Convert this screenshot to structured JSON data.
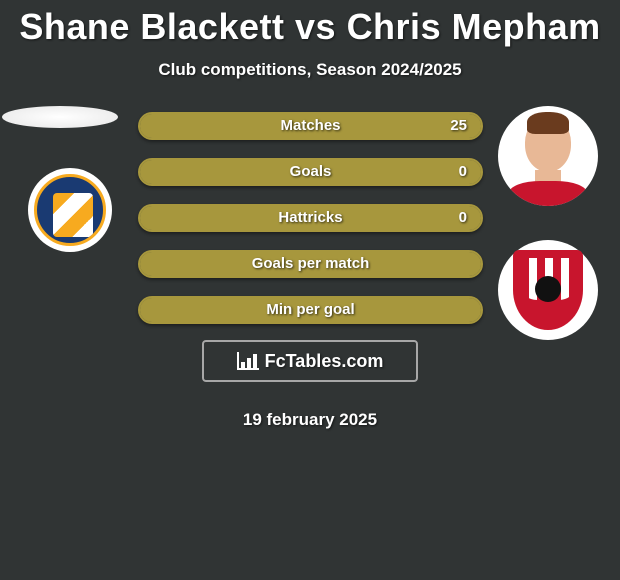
{
  "header": {
    "player1": "Shane Blackett",
    "vs": "vs",
    "player2": "Chris Mepham",
    "subtitle": "Club competitions, Season 2024/2025"
  },
  "colors": {
    "bar_fill": "#a7973d",
    "bar_border": "#a7973d",
    "bar_bg": "#444a3d",
    "background": "#303434"
  },
  "stats": {
    "rows": [
      {
        "label": "Matches",
        "left_val": "",
        "right_val": "25",
        "left_pct": 0,
        "right_pct": 100
      },
      {
        "label": "Goals",
        "left_val": "",
        "right_val": "0",
        "left_pct": 0,
        "right_pct": 100
      },
      {
        "label": "Hattricks",
        "left_val": "",
        "right_val": "0",
        "left_pct": 0,
        "right_pct": 100
      },
      {
        "label": "Goals per match",
        "left_val": "",
        "right_val": "",
        "left_pct": 100,
        "right_pct": 0
      },
      {
        "label": "Min per goal",
        "left_val": "",
        "right_val": "",
        "left_pct": 100,
        "right_pct": 0
      }
    ]
  },
  "watermark": {
    "text": "FcTables.com"
  },
  "date": "19 february 2025",
  "typography": {
    "title_fontsize": 36,
    "subtitle_fontsize": 17,
    "label_fontsize": 15,
    "date_fontsize": 17
  }
}
